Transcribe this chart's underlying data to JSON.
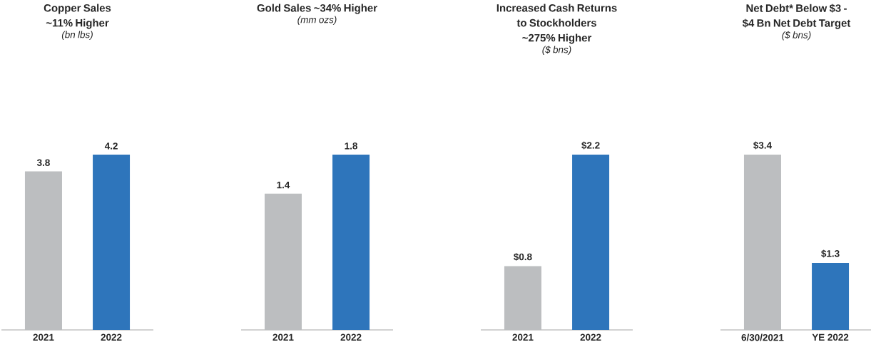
{
  "chart_data": [
    {
      "type": "bar",
      "title": "Copper Sales ~11% Higher",
      "subtitle": "(bn lbs)",
      "categories": [
        "2021",
        "2022"
      ],
      "values": [
        3.8,
        4.2
      ],
      "colors": [
        "#bcbec0",
        "#2e75bb"
      ],
      "value_labels": [
        "3.8",
        "4.2"
      ]
    },
    {
      "type": "bar",
      "title": "Gold Sales ~34% Higher",
      "subtitle": "(mm ozs)",
      "categories": [
        "2021",
        "2022"
      ],
      "values": [
        1.4,
        1.8
      ],
      "colors": [
        "#bcbec0",
        "#2e75bb"
      ],
      "value_labels": [
        "1.4",
        "1.8"
      ]
    },
    {
      "type": "bar",
      "title": "Increased Cash Returns to Stockholders ~275% Higher",
      "subtitle": "($ bns)",
      "categories": [
        "2021",
        "2022"
      ],
      "values": [
        0.8,
        2.2
      ],
      "colors": [
        "#bcbec0",
        "#2e75bb"
      ],
      "value_labels": [
        "$0.8",
        "$2.2"
      ]
    },
    {
      "type": "bar",
      "title": "Net Debt* Below $3 - $4 Bn Net Debt Target",
      "subtitle": "($ bns)",
      "categories": [
        "6/30/2021",
        "YE 2022"
      ],
      "values": [
        3.4,
        1.3
      ],
      "colors": [
        "#bcbec0",
        "#2e75bb"
      ],
      "value_labels": [
        "$3.4",
        "$1.3"
      ]
    }
  ]
}
